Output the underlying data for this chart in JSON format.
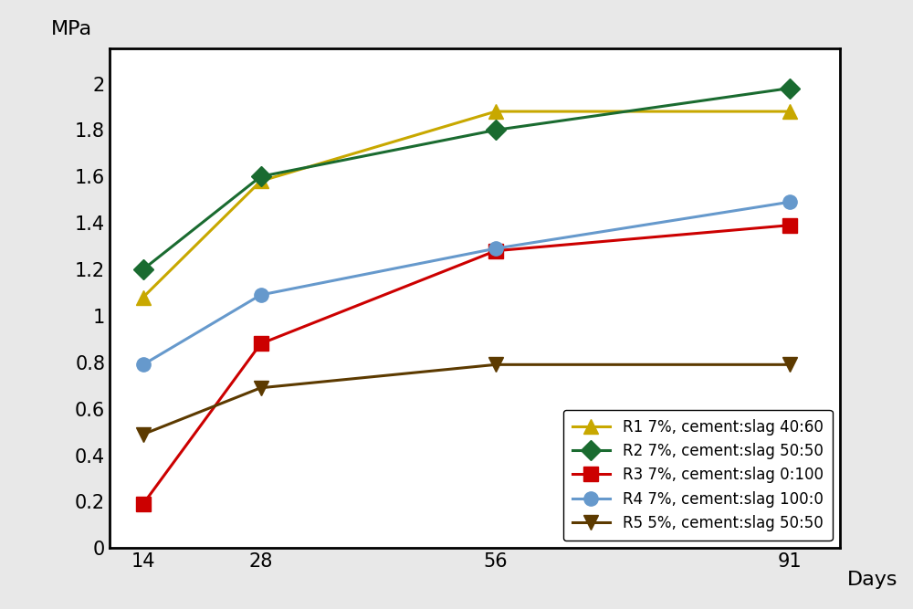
{
  "x": [
    14,
    28,
    56,
    91
  ],
  "series": [
    {
      "label": "R1 7%, cement:slag 40:60",
      "values": [
        1.08,
        1.58,
        1.88,
        1.88
      ],
      "color": "#C8A800",
      "marker": "^",
      "markersize": 11,
      "linewidth": 2.2
    },
    {
      "label": "R2 7%, cement:slag 50:50",
      "values": [
        1.2,
        1.6,
        1.8,
        1.98
      ],
      "color": "#1A6B30",
      "marker": "D",
      "markersize": 11,
      "linewidth": 2.2
    },
    {
      "label": "R3 7%, cement:slag 0:100",
      "values": [
        0.19,
        0.88,
        1.28,
        1.39
      ],
      "color": "#CC0000",
      "marker": "s",
      "markersize": 11,
      "linewidth": 2.2
    },
    {
      "label": "R4 7%, cement:slag 100:0",
      "values": [
        0.79,
        1.09,
        1.29,
        1.49
      ],
      "color": "#6699CC",
      "marker": "o",
      "markersize": 11,
      "linewidth": 2.2
    },
    {
      "label": "R5 5%, cement:slag 50:50",
      "values": [
        0.49,
        0.69,
        0.79,
        0.79
      ],
      "color": "#5C3A00",
      "marker": "v",
      "markersize": 11,
      "linewidth": 2.2
    }
  ],
  "xlabel": "Days",
  "ylabel": "MPa",
  "xlim": [
    10,
    97
  ],
  "ylim": [
    0,
    2.15
  ],
  "xticks": [
    14,
    28,
    56,
    91
  ],
  "yticks": [
    0,
    0.2,
    0.4,
    0.6,
    0.8,
    1.0,
    1.2,
    1.4,
    1.6,
    1.8,
    2.0
  ],
  "legend_loc": "lower right",
  "background_color": "#e8e8e8",
  "plot_bg_color": "#ffffff",
  "label_fontsize": 16,
  "tick_fontsize": 15,
  "legend_fontsize": 12
}
